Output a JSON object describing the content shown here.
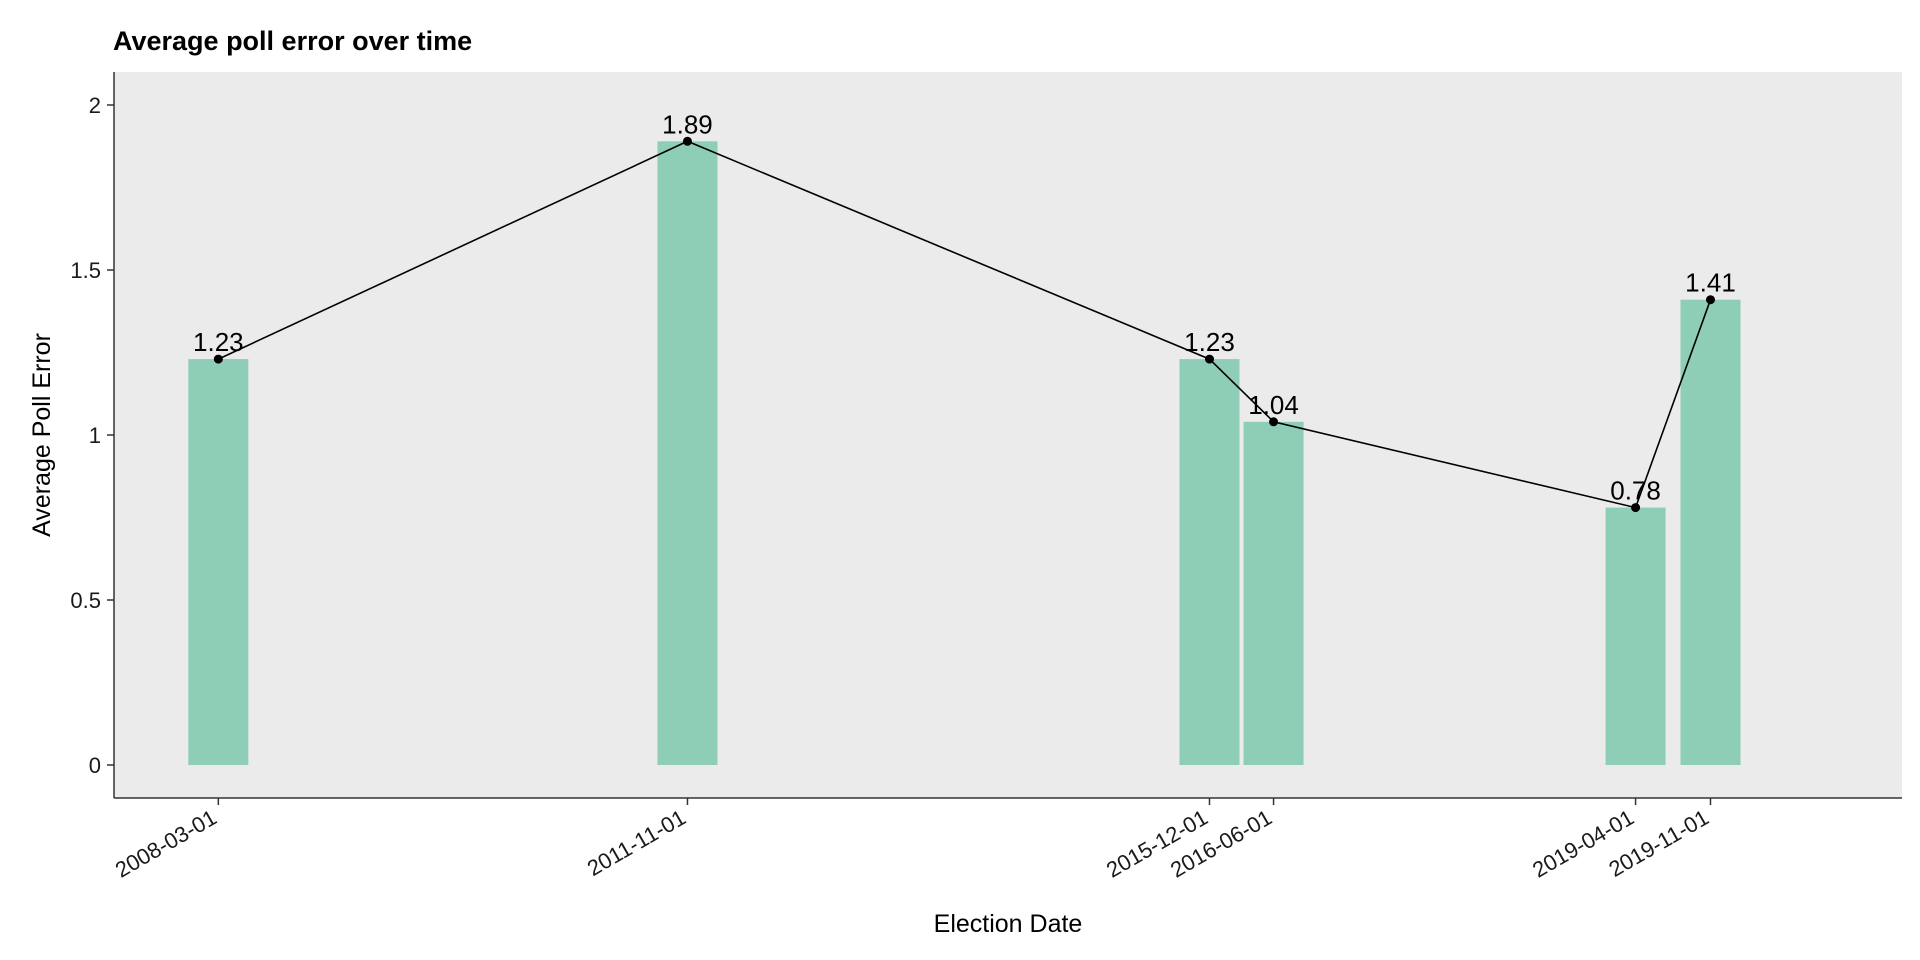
{
  "chart_data": {
    "type": "bar",
    "title": "Average poll error over time",
    "xlabel": "Election Date",
    "ylabel": "Average Poll Error",
    "categories": [
      "2008-03-01",
      "2011-11-01",
      "2015-12-01",
      "2016-06-01",
      "2019-04-01",
      "2019-11-01"
    ],
    "values": [
      1.23,
      1.89,
      1.23,
      1.04,
      0.78,
      1.41
    ],
    "data_labels": [
      "1.23",
      "1.89",
      "1.23",
      "1.04",
      "0.78",
      "1.41"
    ],
    "overlay": "line with points connecting bar tops",
    "ylim": [
      -0.1,
      2.1
    ],
    "yticks": [
      0,
      0.5,
      1,
      1.5,
      2
    ],
    "ytick_labels": [
      "0",
      "0.5",
      "1",
      "1.5",
      "2"
    ],
    "xlim": [
      "2007-05-08",
      "2021-05-01"
    ],
    "grid": false,
    "legend": "none",
    "colors": {
      "bar": "#8ecdb6",
      "line": "#000000",
      "panel_background": "#ebebeb"
    }
  }
}
